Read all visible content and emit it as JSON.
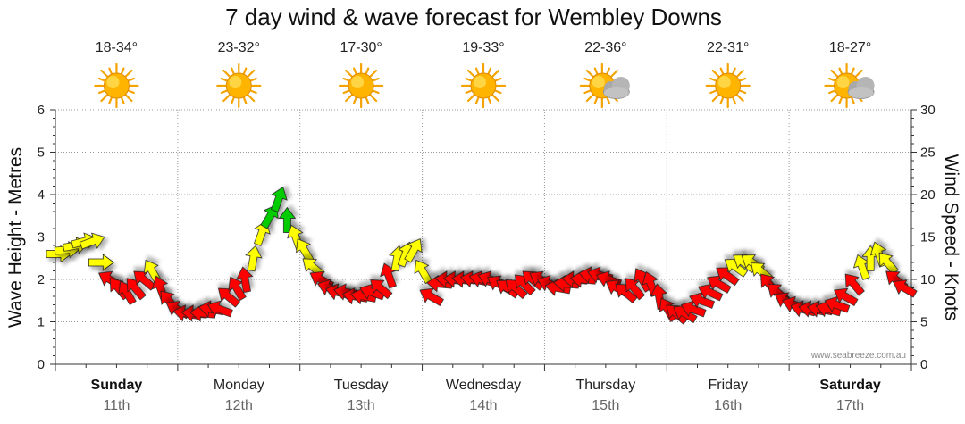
{
  "title": "7 day wind & wave forecast for Wembley Downs",
  "credit": "www.seabreeze.com.au",
  "days": [
    {
      "name": "Sunday",
      "date": "11th",
      "temp": "18-34°",
      "icon": "sun-icon",
      "bold": true
    },
    {
      "name": "Monday",
      "date": "12th",
      "temp": "23-32°",
      "icon": "sun-icon",
      "bold": false
    },
    {
      "name": "Tuesday",
      "date": "13th",
      "temp": "17-30°",
      "icon": "sun-icon",
      "bold": false
    },
    {
      "name": "Wednesday",
      "date": "14th",
      "temp": "19-33°",
      "icon": "sun-icon",
      "bold": false
    },
    {
      "name": "Thursday",
      "date": "15th",
      "temp": "22-36°",
      "icon": "sun-cloud-icon",
      "bold": false
    },
    {
      "name": "Friday",
      "date": "16th",
      "temp": "22-31°",
      "icon": "sun-icon",
      "bold": false
    },
    {
      "name": "Saturday",
      "date": "17th",
      "temp": "18-27°",
      "icon": "sun-cloud-icon",
      "bold": true
    }
  ],
  "colors": {
    "low": "#ffff00",
    "mid": "#00cc00",
    "high": "#ff0000",
    "stroke": "#222222"
  },
  "chart_data": {
    "type": "line",
    "ylabel_left": "Wave Height - Metres",
    "ylabel_right": "Wind Speed - Knots",
    "y_left_range": [
      0,
      6
    ],
    "y_right_range": [
      0,
      30
    ],
    "y_left_ticks": [
      "0",
      "1",
      "2",
      "3",
      "4",
      "5",
      "6"
    ],
    "y_right_ticks": [
      "0",
      "5",
      "10",
      "15",
      "20",
      "25",
      "30"
    ],
    "x_categories": [
      "Sunday 11th",
      "Monday 12th",
      "Tuesday 13th",
      "Wednesday 14th",
      "Thursday 15th",
      "Friday 16th",
      "Saturday 17th"
    ],
    "grid": true,
    "wind_knots_series": [
      13.0,
      13.5,
      14,
      14.5,
      14.5,
      12.0,
      10.0,
      9,
      8.5,
      9,
      10,
      11,
      9,
      7.5,
      6.5,
      6,
      6,
      6,
      6.5,
      6.5,
      8,
      9,
      10,
      12.5,
      15.5,
      17.5,
      19.5,
      17,
      15,
      13.5,
      11.5,
      10,
      9,
      8.5,
      8.5,
      8,
      8,
      8.5,
      9,
      10.5,
      12.5,
      13,
      13.5,
      11,
      8,
      9.5,
      10,
      10,
      10,
      10,
      10,
      10,
      9.5,
      9,
      9,
      9.5,
      10,
      10,
      9.5,
      9,
      9.5,
      10,
      10,
      10.5,
      10.5,
      10,
      9,
      8.5,
      9,
      10,
      9.5,
      8,
      6.5,
      6,
      6,
      6.5,
      7.5,
      8.5,
      9.5,
      10.5,
      11.5,
      12,
      12,
      11,
      9.5,
      8.5,
      7.5,
      7,
      6.5,
      6.5,
      6.5,
      6.5,
      7,
      8,
      9.5,
      11.5,
      12.5,
      13,
      12,
      10,
      9
    ],
    "wind_direction_deg": [
      270,
      265,
      260,
      255,
      250,
      270,
      120,
      140,
      150,
      140,
      130,
      150,
      160,
      140,
      120,
      100,
      95,
      95,
      100,
      110,
      130,
      150,
      170,
      190,
      200,
      210,
      200,
      180,
      160,
      150,
      130,
      120,
      110,
      105,
      100,
      100,
      100,
      110,
      130,
      160,
      190,
      200,
      210,
      150,
      120,
      95,
      95,
      95,
      95,
      100,
      105,
      110,
      120,
      125,
      130,
      135,
      130,
      120,
      110,
      100,
      95,
      95,
      95,
      100,
      105,
      110,
      120,
      130,
      140,
      150,
      160,
      170,
      150,
      130,
      120,
      110,
      110,
      115,
      120,
      125,
      125,
      125,
      125,
      130,
      140,
      130,
      120,
      110,
      105,
      100,
      100,
      105,
      110,
      120,
      140,
      160,
      180,
      160,
      140,
      130,
      120
    ]
  }
}
